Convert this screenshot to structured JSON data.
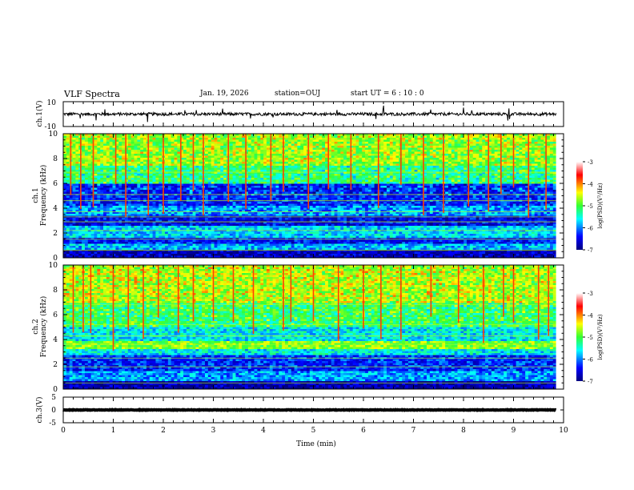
{
  "header": {
    "title": "VLF Spectra",
    "date": "Jan. 19, 2026",
    "station": "station=OUJ",
    "start_time": "start  UT =   6  : 10 : 0"
  },
  "chart_data": [
    {
      "type": "line",
      "name": "ch1-waveform",
      "ylabel": "ch.1(V)",
      "ylim": [
        -10,
        10
      ],
      "yticks": [
        "10",
        "-10"
      ],
      "level": 0,
      "noise_amplitude": 1.2
    },
    {
      "type": "heatmap",
      "name": "ch1-spectrogram",
      "ylabel_line1": "ch.1",
      "ylabel_line2": "Frequency (kHz)",
      "ylim": [
        0,
        10
      ],
      "yticks": [
        "0",
        "2",
        "4",
        "6",
        "8",
        "10"
      ],
      "xlim": [
        0,
        9.85
      ],
      "colorbar": {
        "min": -7,
        "max": -3,
        "ticks": [
          "-3",
          "-4",
          "-5",
          "-6",
          "-7"
        ],
        "label": "log(PSD)(V²/Hz)"
      },
      "bands_log_psd": [
        {
          "f": [
            0.0,
            0.6
          ],
          "v": -6.7
        },
        {
          "f": [
            0.6,
            1.2
          ],
          "v": -5.8
        },
        {
          "f": [
            1.2,
            1.6
          ],
          "v": -6.4
        },
        {
          "f": [
            1.6,
            2.6
          ],
          "v": -5.7
        },
        {
          "f": [
            2.6,
            3.4
          ],
          "v": -6.5
        },
        {
          "f": [
            3.4,
            4.2
          ],
          "v": -5.9
        },
        {
          "f": [
            4.2,
            6.0
          ],
          "v": -6.3
        },
        {
          "f": [
            6.0,
            7.4
          ],
          "v": -5.2
        },
        {
          "f": [
            7.4,
            10.0
          ],
          "v": -4.7
        }
      ],
      "line_frequencies_khz": [
        0.6,
        1.5,
        2.2,
        2.9,
        3.3,
        3.7,
        4.6,
        5.1,
        6.9
      ],
      "sferic_times_min": [
        0.15,
        0.35,
        0.6,
        1.05,
        1.25,
        1.7,
        2.0,
        2.35,
        2.6,
        2.8,
        3.3,
        3.65,
        4.15,
        4.4,
        4.9,
        5.3,
        5.75,
        6.3,
        6.75,
        7.2,
        7.6,
        8.1,
        8.5,
        8.75,
        9.0,
        9.3,
        9.65
      ]
    },
    {
      "type": "heatmap",
      "name": "ch2-spectrogram",
      "ylabel_line1": "ch.2",
      "ylabel_line2": "Frequency (kHz)",
      "ylim": [
        0,
        10
      ],
      "yticks": [
        "0",
        "2",
        "4",
        "6",
        "8",
        "10"
      ],
      "xlim": [
        0,
        9.85
      ],
      "colorbar": {
        "min": -7,
        "max": -3,
        "ticks": [
          "-3",
          "-4",
          "-5",
          "-6",
          "-7"
        ],
        "label": "log(PSD)(V²/Hz)"
      },
      "bands_log_psd": [
        {
          "f": [
            0.0,
            0.6
          ],
          "v": -6.8
        },
        {
          "f": [
            0.6,
            1.4
          ],
          "v": -5.9
        },
        {
          "f": [
            1.4,
            2.8
          ],
          "v": -6.3
        },
        {
          "f": [
            2.8,
            3.3
          ],
          "v": -5.6
        },
        {
          "f": [
            3.3,
            3.9
          ],
          "v": -4.8
        },
        {
          "f": [
            3.9,
            5.0
          ],
          "v": -5.6
        },
        {
          "f": [
            5.0,
            7.0
          ],
          "v": -5.1
        },
        {
          "f": [
            7.0,
            10.0
          ],
          "v": -4.6
        }
      ],
      "line_frequencies_khz": [
        0.5,
        1.8,
        2.5,
        3.6,
        4.3,
        5.2,
        6.8
      ],
      "sferic_times_min": [
        0.2,
        0.4,
        0.55,
        1.0,
        1.3,
        1.6,
        1.9,
        2.3,
        2.6,
        3.0,
        3.4,
        3.8,
        4.4,
        4.55,
        5.0,
        5.5,
        6.0,
        6.35,
        6.75,
        7.35,
        7.9,
        8.4,
        8.8,
        9.0,
        9.5,
        9.7
      ]
    },
    {
      "type": "line",
      "name": "ch3-waveform",
      "ylabel": "ch.3(V)",
      "ylim": [
        -5,
        5
      ],
      "yticks": [
        "5",
        "0",
        "-5"
      ],
      "level": 0,
      "noise_amplitude": 0.1
    }
  ],
  "xaxis": {
    "label": "Time  (min)",
    "range": [
      0,
      10
    ],
    "ticks": [
      "0",
      "1",
      "2",
      "3",
      "4",
      "5",
      "6",
      "7",
      "8",
      "9",
      "10"
    ]
  }
}
